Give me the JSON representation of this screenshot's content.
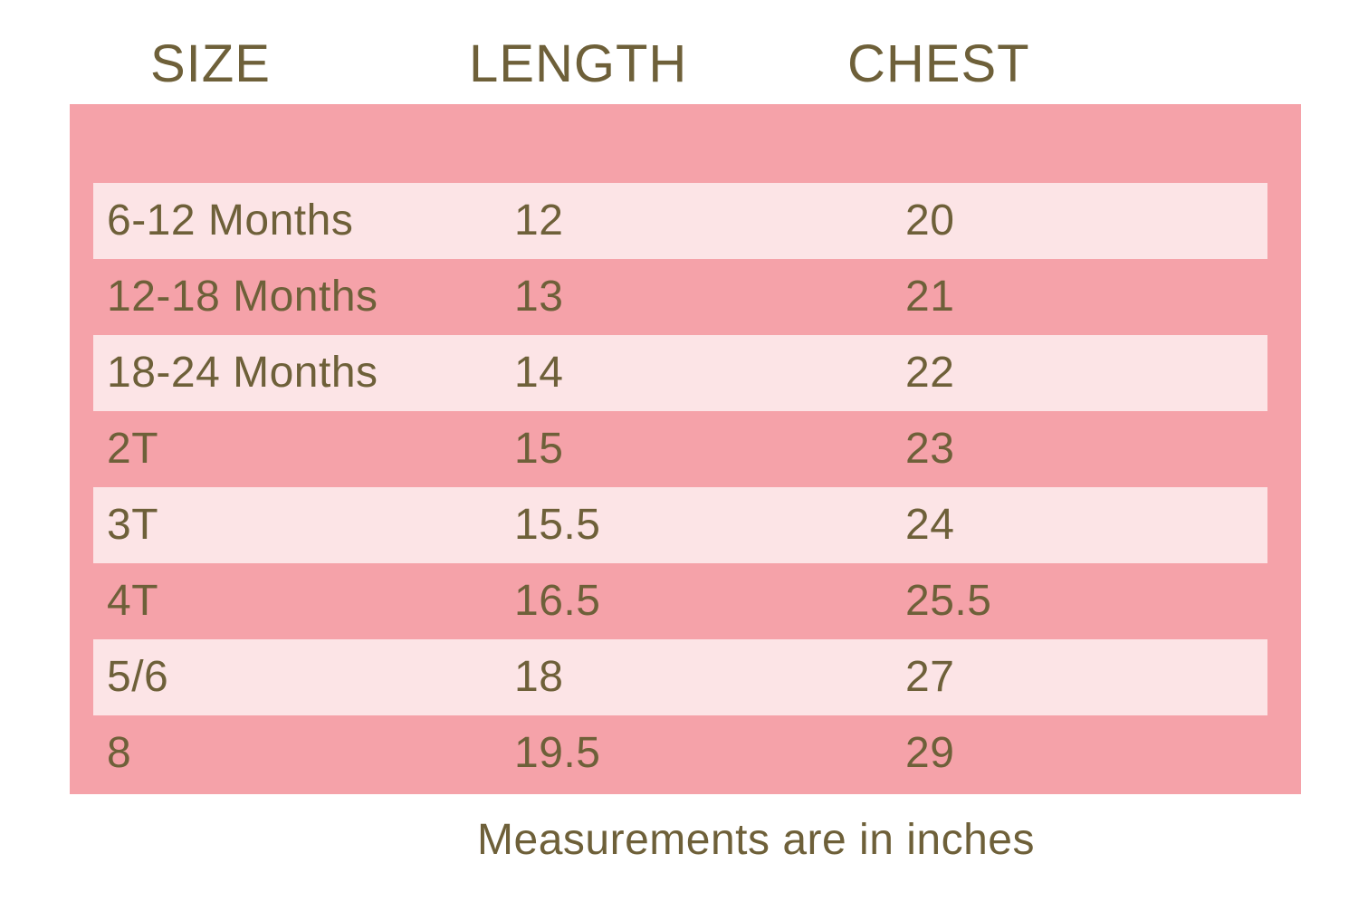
{
  "chart_data": {
    "type": "table",
    "columns": [
      "SIZE",
      "LENGTH",
      "CHEST"
    ],
    "rows": [
      {
        "size": "6-12 Months",
        "length": "12",
        "chest": "20"
      },
      {
        "size": "12-18 Months",
        "length": "13",
        "chest": "21"
      },
      {
        "size": "18-24 Months",
        "length": "14",
        "chest": "22"
      },
      {
        "size": "2T",
        "length": "15",
        "chest": "23"
      },
      {
        "size": "3T",
        "length": "15.5",
        "chest": "24"
      },
      {
        "size": "4T",
        "length": "16.5",
        "chest": "25.5"
      },
      {
        "size": "5/6",
        "length": "18",
        "chest": "27"
      },
      {
        "size": "8",
        "length": "19.5",
        "chest": "29"
      }
    ],
    "note": "Measurements are in inches"
  },
  "colors": {
    "page_bg": "#FFFFFF",
    "table_bg": "#F5A2A9",
    "row_stripe_bg": "#FCE4E6",
    "text": "#6E6039"
  }
}
